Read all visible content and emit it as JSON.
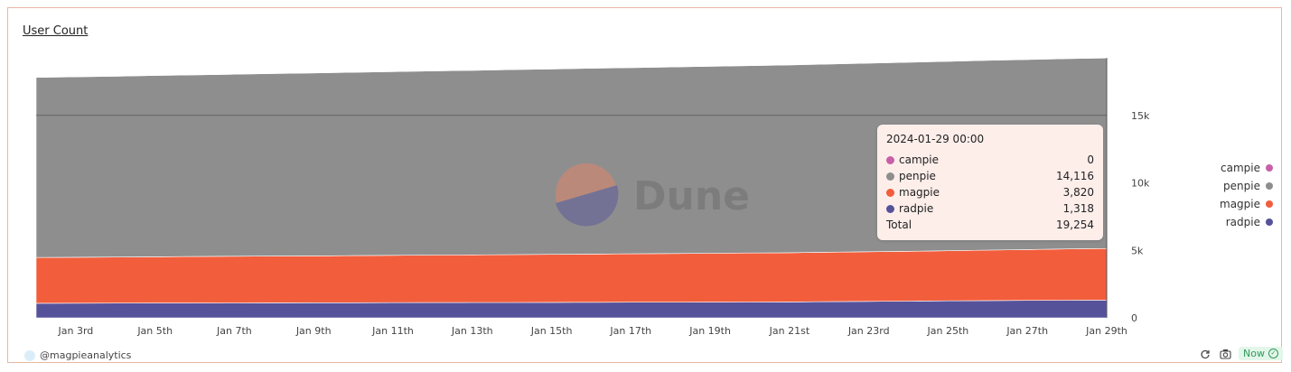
{
  "title": "User Count",
  "watermark": "Dune",
  "author": "@magpieanalytics",
  "status_badge": "Now",
  "colors": {
    "campie": "#c860a8",
    "penpie": "#8e8e8e",
    "magpie": "#f25d3c",
    "radpie": "#56529a"
  },
  "tooltip": {
    "title": "2024-01-29 00:00",
    "rows": [
      {
        "name": "campie",
        "value": "0"
      },
      {
        "name": "penpie",
        "value": "14,116"
      },
      {
        "name": "magpie",
        "value": "3,820"
      },
      {
        "name": "radpie",
        "value": "1,318"
      }
    ],
    "total_label": "Total",
    "total_value": "19,254"
  },
  "legend": [
    "campie",
    "penpie",
    "magpie",
    "radpie"
  ],
  "chart_data": {
    "type": "area",
    "stacked": true,
    "x": [
      "2024-01-02",
      "2024-01-03",
      "2024-01-04",
      "2024-01-05",
      "2024-01-06",
      "2024-01-07",
      "2024-01-08",
      "2024-01-09",
      "2024-01-10",
      "2024-01-11",
      "2024-01-12",
      "2024-01-13",
      "2024-01-14",
      "2024-01-15",
      "2024-01-16",
      "2024-01-17",
      "2024-01-18",
      "2024-01-19",
      "2024-01-20",
      "2024-01-21",
      "2024-01-22",
      "2024-01-23",
      "2024-01-24",
      "2024-01-25",
      "2024-01-26",
      "2024-01-27",
      "2024-01-28",
      "2024-01-29"
    ],
    "x_tick_labels": [
      "Jan 3rd",
      "Jan 5th",
      "Jan 7th",
      "Jan 9th",
      "Jan 11th",
      "Jan 13th",
      "Jan 15th",
      "Jan 17th",
      "Jan 19th",
      "Jan 21st",
      "Jan 23rd",
      "Jan 25th",
      "Jan 27th",
      "Jan 29th"
    ],
    "y_tick_labels": [
      "0",
      "5k",
      "10k",
      "15k"
    ],
    "ylim": [
      0,
      20000
    ],
    "series": [
      {
        "name": "radpie",
        "values": [
          1080,
          1085,
          1090,
          1095,
          1100,
          1105,
          1110,
          1115,
          1120,
          1125,
          1130,
          1135,
          1140,
          1145,
          1150,
          1155,
          1160,
          1165,
          1170,
          1180,
          1200,
          1220,
          1240,
          1260,
          1275,
          1290,
          1305,
          1318
        ]
      },
      {
        "name": "magpie",
        "values": [
          3390,
          3400,
          3410,
          3425,
          3440,
          3455,
          3465,
          3475,
          3490,
          3505,
          3520,
          3530,
          3545,
          3560,
          3575,
          3590,
          3600,
          3615,
          3630,
          3645,
          3660,
          3675,
          3690,
          3710,
          3740,
          3770,
          3800,
          3820
        ]
      },
      {
        "name": "penpie",
        "values": [
          13340,
          13370,
          13400,
          13430,
          13460,
          13490,
          13520,
          13550,
          13580,
          13610,
          13640,
          13670,
          13700,
          13730,
          13760,
          13790,
          13820,
          13850,
          13880,
          13910,
          13940,
          13970,
          14000,
          14030,
          14060,
          14080,
          14100,
          14116
        ]
      },
      {
        "name": "campie",
        "values": [
          0,
          0,
          0,
          0,
          0,
          0,
          0,
          0,
          0,
          0,
          0,
          0,
          0,
          0,
          0,
          0,
          0,
          0,
          0,
          0,
          0,
          0,
          0,
          0,
          0,
          0,
          0,
          0
        ]
      }
    ],
    "grid": false,
    "legend_position": "right"
  }
}
